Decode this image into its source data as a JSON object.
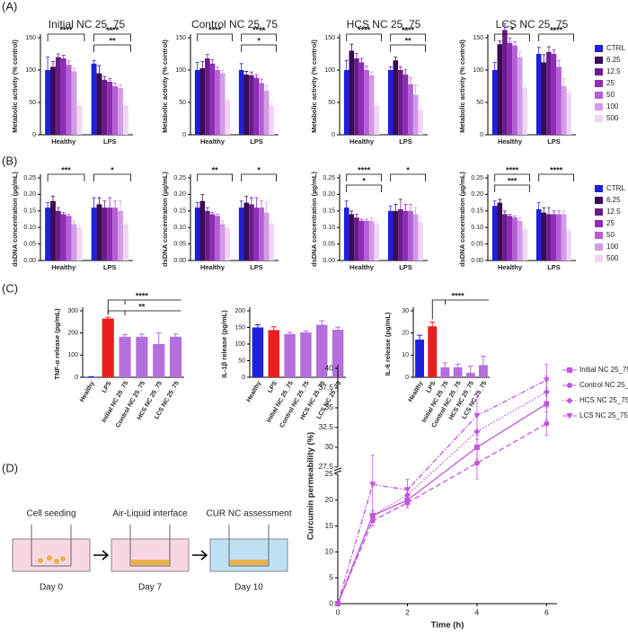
{
  "panels": [
    "(A)",
    "(B)",
    "(C)",
    "(D)"
  ],
  "diagram": {
    "steps": [
      {
        "label": "Cell seeding",
        "day": "Day 0"
      },
      {
        "label": "Air-Liquid interface",
        "day": "Day 7"
      },
      {
        "label": "CUR NC assessment",
        "day": "Day 10"
      }
    ]
  },
  "chart_data": [
    {
      "type": "grouped_bar",
      "title": "Initial NC 25_75",
      "ylabel": "Metabolic activity (% control)",
      "categories": [
        "Healthy",
        "LPS"
      ],
      "ylim": [
        0,
        150
      ],
      "yticks": [
        0,
        50,
        100,
        150
      ],
      "annotations": [
        "****",
        "****",
        "**"
      ],
      "series": [
        {
          "color": "#1f1fe0",
          "values": [
            100,
            110
          ],
          "errors": [
            20,
            5
          ]
        },
        {
          "color": "#3a0b52",
          "values": [
            105,
            95
          ],
          "errors": [
            8,
            12
          ]
        },
        {
          "color": "#6a1a8a",
          "values": [
            120,
            85
          ],
          "errors": [
            5,
            5
          ]
        },
        {
          "color": "#8e2cb8",
          "values": [
            118,
            82
          ],
          "errors": [
            5,
            5
          ]
        },
        {
          "color": "#b45fd6",
          "values": [
            108,
            75
          ],
          "errors": [
            6,
            5
          ]
        },
        {
          "color": "#d39be8",
          "values": [
            98,
            72
          ],
          "errors": [
            5,
            5
          ]
        },
        {
          "color": "#f0d6f5",
          "values": [
            45,
            45
          ],
          "errors": [
            5,
            5
          ]
        }
      ]
    },
    {
      "type": "grouped_bar",
      "title": "Control NC 25_75",
      "ylabel": "Metabolic activity (% control)",
      "categories": [
        "Healthy",
        "LPS"
      ],
      "ylim": [
        0,
        150
      ],
      "yticks": [
        0,
        50,
        100,
        150
      ],
      "annotations": [
        "****",
        "****",
        "*"
      ],
      "series": [
        {
          "color": "#1f1fe0",
          "values": [
            100,
            100
          ],
          "errors": [
            12,
            10
          ]
        },
        {
          "color": "#3a0b52",
          "values": [
            103,
            93
          ],
          "errors": [
            10,
            5
          ]
        },
        {
          "color": "#6a1a8a",
          "values": [
            118,
            92
          ],
          "errors": [
            6,
            5
          ]
        },
        {
          "color": "#8e2cb8",
          "values": [
            110,
            88
          ],
          "errors": [
            6,
            5
          ]
        },
        {
          "color": "#b45fd6",
          "values": [
            100,
            80
          ],
          "errors": [
            5,
            6
          ]
        },
        {
          "color": "#d39be8",
          "values": [
            95,
            68
          ],
          "errors": [
            5,
            8
          ]
        },
        {
          "color": "#f0d6f5",
          "values": [
            55,
            45
          ],
          "errors": [
            5,
            5
          ]
        }
      ]
    },
    {
      "type": "grouped_bar",
      "title": "HCS NC 25_75",
      "ylabel": "Metabolic activity (% control)",
      "categories": [
        "Healthy",
        "LPS"
      ],
      "ylim": [
        0,
        150
      ],
      "yticks": [
        0,
        50,
        100,
        150
      ],
      "annotations": [
        "****",
        "****",
        "**"
      ],
      "series": [
        {
          "color": "#1f1fe0",
          "values": [
            100,
            100
          ],
          "errors": [
            15,
            5
          ]
        },
        {
          "color": "#3a0b52",
          "values": [
            130,
            115
          ],
          "errors": [
            10,
            5
          ]
        },
        {
          "color": "#6a1a8a",
          "values": [
            118,
            100
          ],
          "errors": [
            8,
            5
          ]
        },
        {
          "color": "#8e2cb8",
          "values": [
            112,
            93
          ],
          "errors": [
            6,
            8
          ]
        },
        {
          "color": "#b45fd6",
          "values": [
            100,
            78
          ],
          "errors": [
            6,
            10
          ]
        },
        {
          "color": "#d39be8",
          "values": [
            92,
            62
          ],
          "errors": [
            5,
            15
          ]
        },
        {
          "color": "#f0d6f5",
          "values": [
            45,
            38
          ],
          "errors": [
            5,
            5
          ]
        }
      ]
    },
    {
      "type": "grouped_bar",
      "title": "LCS NC 25_75",
      "ylabel": "Metabolic activity (% control)",
      "categories": [
        "Healthy",
        "LPS"
      ],
      "ylim": [
        0,
        150
      ],
      "yticks": [
        0,
        50,
        100,
        150
      ],
      "annotations": [
        "*",
        "****"
      ],
      "legend": true,
      "series": [
        {
          "name": "CTRL",
          "color": "#1f1fe0",
          "values": [
            100,
            125
          ],
          "errors": [
            12,
            10
          ]
        },
        {
          "name": "6.25",
          "color": "#3a0b52",
          "values": [
            140,
            112
          ],
          "errors": [
            5,
            12
          ]
        },
        {
          "name": "12.5",
          "color": "#6a1a8a",
          "values": [
            162,
            128
          ],
          "errors": [
            10,
            8
          ]
        },
        {
          "name": "25",
          "color": "#8e2cb8",
          "values": [
            142,
            125
          ],
          "errors": [
            8,
            6
          ]
        },
        {
          "name": "50",
          "color": "#b45fd6",
          "values": [
            138,
            105
          ],
          "errors": [
            6,
            10
          ]
        },
        {
          "name": "100",
          "color": "#d39be8",
          "values": [
            120,
            75
          ],
          "errors": [
            8,
            12
          ]
        },
        {
          "name": "500",
          "color": "#f0d6f5",
          "values": [
            72,
            65
          ],
          "errors": [
            5,
            5
          ]
        }
      ]
    },
    {
      "type": "grouped_bar",
      "ylabel": "dsDNA concentration (µg/mL)",
      "categories": [
        "Healthy",
        "LPS"
      ],
      "ylim": [
        0,
        0.25
      ],
      "yticks": [
        {
          "value": 0,
          "label": "0.00"
        },
        0.05,
        {
          "value": 0.1,
          "label": "0.10"
        },
        0.15,
        {
          "value": 0.2,
          "label": "0.20"
        },
        0.25
      ],
      "annotations": [
        "***",
        "*"
      ],
      "series": [
        {
          "color": "#1f1fe0",
          "values": [
            0.16,
            0.16
          ],
          "errors": [
            0.015,
            0.03
          ]
        },
        {
          "color": "#3a0b52",
          "values": [
            0.18,
            0.17
          ],
          "errors": [
            0.015,
            0.02
          ]
        },
        {
          "color": "#6a1a8a",
          "values": [
            0.15,
            0.16
          ],
          "errors": [
            0.01,
            0.02
          ]
        },
        {
          "color": "#8e2cb8",
          "values": [
            0.14,
            0.16
          ],
          "errors": [
            0.005,
            0.03
          ]
        },
        {
          "color": "#b45fd6",
          "values": [
            0.135,
            0.16
          ],
          "errors": [
            0.005,
            0.02
          ]
        },
        {
          "color": "#d39be8",
          "values": [
            0.11,
            0.15
          ],
          "errors": [
            0.01,
            0.03
          ]
        },
        {
          "color": "#f0d6f5",
          "values": [
            0.1,
            0.11
          ],
          "errors": [
            0.01,
            0.01
          ]
        }
      ]
    },
    {
      "type": "grouped_bar",
      "ylabel": "dsDNA concentration (µg/mL)",
      "categories": [
        "Healthy",
        "LPS"
      ],
      "ylim": [
        0,
        0.25
      ],
      "yticks": [
        {
          "value": 0,
          "label": "0.00"
        },
        0.05,
        {
          "value": 0.1,
          "label": "0.10"
        },
        0.15,
        {
          "value": 0.2,
          "label": "0.20"
        },
        0.25
      ],
      "annotations": [
        "**",
        "*"
      ],
      "series": [
        {
          "color": "#1f1fe0",
          "values": [
            0.16,
            0.16
          ],
          "errors": [
            0.015,
            0.02
          ]
        },
        {
          "color": "#3a0b52",
          "values": [
            0.18,
            0.175
          ],
          "errors": [
            0.02,
            0.02
          ]
        },
        {
          "color": "#6a1a8a",
          "values": [
            0.15,
            0.17
          ],
          "errors": [
            0.01,
            0.02
          ]
        },
        {
          "color": "#8e2cb8",
          "values": [
            0.14,
            0.16
          ],
          "errors": [
            0.005,
            0.03
          ]
        },
        {
          "color": "#b45fd6",
          "values": [
            0.135,
            0.16
          ],
          "errors": [
            0.005,
            0.02
          ]
        },
        {
          "color": "#d39be8",
          "values": [
            0.11,
            0.145
          ],
          "errors": [
            0.01,
            0.03
          ]
        },
        {
          "color": "#f0d6f5",
          "values": [
            0.1,
            0.11
          ],
          "errors": [
            0.01,
            0.01
          ]
        }
      ]
    },
    {
      "type": "grouped_bar",
      "ylabel": "dsDNA concentration (µg/mL)",
      "categories": [
        "Healthy",
        "LPS"
      ],
      "ylim": [
        0,
        0.25
      ],
      "yticks": [
        {
          "value": 0,
          "label": "0.00"
        },
        0.05,
        {
          "value": 0.1,
          "label": "0.10"
        },
        0.15,
        {
          "value": 0.2,
          "label": "0.20"
        },
        0.25
      ],
      "annotations": [
        "****",
        "*",
        "*"
      ],
      "series": [
        {
          "color": "#1f1fe0",
          "values": [
            0.16,
            0.15
          ],
          "errors": [
            0.02,
            0.015
          ]
        },
        {
          "color": "#3a0b52",
          "values": [
            0.14,
            0.15
          ],
          "errors": [
            0.01,
            0.02
          ]
        },
        {
          "color": "#6a1a8a",
          "values": [
            0.13,
            0.155
          ],
          "errors": [
            0.01,
            0.03
          ]
        },
        {
          "color": "#8e2cb8",
          "values": [
            0.12,
            0.15
          ],
          "errors": [
            0.005,
            0.02
          ]
        },
        {
          "color": "#b45fd6",
          "values": [
            0.12,
            0.15
          ],
          "errors": [
            0.005,
            0.02
          ]
        },
        {
          "color": "#d39be8",
          "values": [
            0.12,
            0.14
          ],
          "errors": [
            0.01,
            0.02
          ]
        },
        {
          "color": "#f0d6f5",
          "values": [
            0.11,
            0.115
          ],
          "errors": [
            0.01,
            0.02
          ]
        }
      ]
    },
    {
      "type": "grouped_bar",
      "ylabel": "dsDNA concentration (µg/mL)",
      "categories": [
        "Healthy",
        "LPS"
      ],
      "ylim": [
        0,
        0.25
      ],
      "yticks": [
        {
          "value": 0,
          "label": "0.00"
        },
        0.05,
        {
          "value": 0.1,
          "label": "0.10"
        },
        0.15,
        {
          "value": 0.2,
          "label": "0.20"
        },
        0.25
      ],
      "annotations": [
        "****",
        "****",
        "***"
      ],
      "legend": true,
      "series": [
        {
          "name": "CTRL",
          "color": "#1f1fe0",
          "values": [
            0.165,
            0.155
          ],
          "errors": [
            0.015,
            0.02
          ]
        },
        {
          "name": "6.25",
          "color": "#3a0b52",
          "values": [
            0.175,
            0.145
          ],
          "errors": [
            0.01,
            0.015
          ]
        },
        {
          "name": "12.5",
          "color": "#6a1a8a",
          "values": [
            0.14,
            0.14
          ],
          "errors": [
            0.01,
            0.02
          ]
        },
        {
          "name": "25",
          "color": "#8e2cb8",
          "values": [
            0.135,
            0.14
          ],
          "errors": [
            0.005,
            0.01
          ]
        },
        {
          "name": "50",
          "color": "#b45fd6",
          "values": [
            0.13,
            0.14
          ],
          "errors": [
            0.005,
            0.01
          ]
        },
        {
          "name": "100",
          "color": "#d39be8",
          "values": [
            0.12,
            0.14
          ],
          "errors": [
            0.01,
            0.01
          ]
        },
        {
          "name": "500",
          "color": "#f0d6f5",
          "values": [
            0.095,
            0.09
          ],
          "errors": [
            0.005,
            0.005
          ]
        }
      ]
    },
    {
      "type": "bar",
      "ylabel": "TNF-α release (pg/mL)",
      "categories": [
        "Healthy",
        "LPS",
        "Initial NC 25_75",
        "Control NC 25_75",
        "HCS NC 25_75",
        "LCS NC 25_75"
      ],
      "values": [
        2,
        265,
        183,
        183,
        150,
        183
      ],
      "errors": [
        1,
        6,
        10,
        12,
        50,
        12
      ],
      "colors": [
        "#1f1fe0",
        "#ee1c1c",
        "#b46fdc",
        "#b46fdc",
        "#b46fdc",
        "#b46fdc"
      ],
      "ylim": [
        0,
        300
      ],
      "yticks": [
        0,
        100,
        200,
        300
      ],
      "annotations": [
        "****",
        "**"
      ]
    },
    {
      "type": "bar",
      "ylabel": "IL-1β release (pg/mL)",
      "categories": [
        "Healthy",
        "LPS",
        "Initial NC 25_75",
        "Control NC 25_75",
        "HCS NC 25_75",
        "LCS NC 25_75"
      ],
      "values": [
        150,
        142,
        130,
        135,
        158,
        143
      ],
      "errors": [
        8,
        10,
        5,
        5,
        12,
        8
      ],
      "colors": [
        "#1f1fe0",
        "#ee1c1c",
        "#b46fdc",
        "#b46fdc",
        "#b46fdc",
        "#b46fdc"
      ],
      "ylim": [
        0,
        200
      ],
      "yticks": [
        0,
        50,
        100,
        150,
        200
      ],
      "annotations": []
    },
    {
      "type": "bar",
      "ylabel": "IL-6 release (pg/mL)",
      "categories": [
        "Healthy",
        "LPS",
        "Initial NC 25_75",
        "Control NC 25_75",
        "HCS NC 25_75",
        "LCS NC 25_75"
      ],
      "values": [
        17,
        23,
        4.5,
        4.5,
        2,
        5.5
      ],
      "errors": [
        2,
        2,
        2,
        1.5,
        3,
        4
      ],
      "colors": [
        "#1f1fe0",
        "#ee1c1c",
        "#b46fdc",
        "#b46fdc",
        "#b46fdc",
        "#b46fdc"
      ],
      "ylim": [
        0,
        30
      ],
      "yticks": [
        0,
        10,
        20,
        30
      ],
      "annotations": [
        "****"
      ]
    },
    {
      "type": "line",
      "xlabel": "Time (h)",
      "ylabel": "Curcumin permeability (%)",
      "x": [
        0,
        1,
        2,
        4,
        6
      ],
      "xlim": [
        0,
        6.3
      ],
      "xticks": [
        0,
        2,
        4,
        6
      ],
      "ylim": [
        0,
        40
      ],
      "ybreak": [
        25,
        27.5
      ],
      "yticks": [
        0,
        5,
        10,
        15,
        20,
        25,
        27.5,
        30,
        32.5,
        35,
        37.5,
        40
      ],
      "series": [
        {
          "name": "Initial NC 25_75",
          "color": "#c355e0",
          "marker": "square",
          "dash": "solid",
          "values": [
            0,
            17,
            20,
            30,
            35.5
          ],
          "errors": [
            0,
            1,
            1,
            1.5,
            2
          ]
        },
        {
          "name": "Control NC 25_75",
          "color": "#c355e0",
          "marker": "circle",
          "dash": "dashed",
          "values": [
            0,
            16,
            19.5,
            28,
            33
          ],
          "errors": [
            0,
            1,
            1,
            2,
            1.5
          ]
        },
        {
          "name": "HCS NC 25_75",
          "color": "#c355e0",
          "marker": "diamond",
          "dash": "dotted",
          "values": [
            0,
            17,
            21,
            32,
            37
          ],
          "errors": [
            0,
            1,
            1,
            2,
            2
          ]
        },
        {
          "name": "LCS NC 25_75",
          "color": "#c355e0",
          "marker": "triangle",
          "dash": "dashdot",
          "values": [
            0,
            23,
            22,
            34,
            38.5
          ],
          "errors": [
            0,
            6,
            2,
            3,
            2
          ]
        }
      ]
    }
  ]
}
